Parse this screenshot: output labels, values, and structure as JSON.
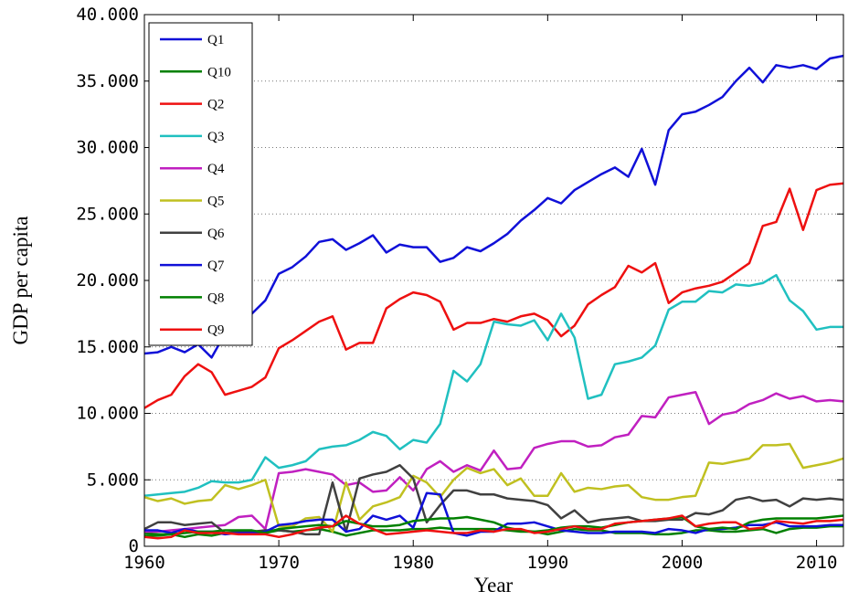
{
  "chart_data": {
    "type": "line",
    "xlabel": "Year",
    "ylabel": "GDP per capita",
    "x": [
      1960,
      1961,
      1962,
      1963,
      1964,
      1965,
      1966,
      1967,
      1968,
      1969,
      1970,
      1971,
      1972,
      1973,
      1974,
      1975,
      1976,
      1977,
      1978,
      1979,
      1980,
      1981,
      1982,
      1983,
      1984,
      1985,
      1986,
      1987,
      1988,
      1989,
      1990,
      1991,
      1992,
      1993,
      1994,
      1995,
      1996,
      1997,
      1998,
      1999,
      2000,
      2001,
      2002,
      2003,
      2004,
      2005,
      2006,
      2007,
      2008,
      2009,
      2010,
      2011,
      2012
    ],
    "xlim": [
      1960,
      2012
    ],
    "xticks": [
      1960,
      1970,
      1980,
      1990,
      2000,
      2010
    ],
    "ylim": [
      0,
      40000
    ],
    "yticks": [
      0,
      {
        "value": 5000,
        "label": "5.000"
      },
      {
        "value": 10000,
        "label": "10.000"
      },
      {
        "value": 15000,
        "label": "15.000"
      },
      {
        "value": 20000,
        "label": "20.000"
      },
      {
        "value": 25000,
        "label": "25.000"
      },
      {
        "value": 30000,
        "label": "30.000"
      },
      {
        "value": 35000,
        "label": "35.000"
      },
      {
        "value": 40000,
        "label": "40.000"
      }
    ],
    "grid": true,
    "legend": "upper left",
    "series": [
      {
        "name": "Q1",
        "color": "#1010d8",
        "values": [
          14500,
          14600,
          15000,
          14600,
          15200,
          14200,
          16000,
          17000,
          17500,
          18500,
          20500,
          21000,
          21800,
          22900,
          23100,
          22300,
          22800,
          23400,
          22100,
          22700,
          22500,
          22500,
          21400,
          21700,
          22500,
          22200,
          22800,
          23500,
          24500,
          25300,
          26200,
          25800,
          26800,
          27400,
          28000,
          28500,
          27800,
          29900,
          27200,
          31300,
          32500,
          32700,
          33200,
          33800,
          35000,
          36000,
          34900,
          36200,
          36000,
          36200,
          35900,
          36700,
          36900
        ]
      },
      {
        "name": "Q10",
        "color": "#008000",
        "values": [
          1000,
          900,
          900,
          700,
          900,
          800,
          1000,
          1000,
          1000,
          1000,
          1200,
          1100,
          1200,
          1300,
          1100,
          800,
          1000,
          1200,
          1200,
          1200,
          1300,
          1300,
          1400,
          1300,
          1300,
          1300,
          1300,
          1200,
          1100,
          1100,
          900,
          1100,
          1300,
          1200,
          1200,
          1000,
          1000,
          1000,
          900,
          900,
          1000,
          1200,
          1200,
          1100,
          1100,
          1200,
          1300,
          1000,
          1300,
          1400,
          1400,
          1500,
          1500
        ]
      },
      {
        "name": "Q2",
        "color": "#ee1010",
        "values": [
          10400,
          11000,
          11400,
          12800,
          13700,
          13100,
          11400,
          11700,
          12000,
          12700,
          14900,
          15500,
          16200,
          16900,
          17300,
          14800,
          15300,
          15300,
          17900,
          18600,
          19100,
          18900,
          18400,
          16300,
          16800,
          16800,
          17100,
          16900,
          17300,
          17500,
          17000,
          15800,
          16600,
          18200,
          18900,
          19500,
          21100,
          20600,
          21300,
          18300,
          19100,
          19400,
          19600,
          19900,
          20600,
          21300,
          24100,
          24400,
          26900,
          23800,
          26800,
          27200,
          27300
        ]
      },
      {
        "name": "Q3",
        "color": "#20c0c0",
        "values": [
          3800,
          3900,
          4000,
          4100,
          4400,
          4900,
          4800,
          4800,
          5000,
          6700,
          5900,
          6100,
          6400,
          7300,
          7500,
          7600,
          8000,
          8600,
          8300,
          7300,
          8000,
          7800,
          9200,
          13200,
          12400,
          13700,
          16900,
          16700,
          16600,
          17000,
          15500,
          17500,
          15700,
          11100,
          11400,
          13700,
          13900,
          14200,
          15100,
          17800,
          18400,
          18400,
          19200,
          19100,
          19700,
          19600,
          19800,
          20400,
          18500,
          17700,
          16300,
          16500,
          16500
        ]
      },
      {
        "name": "Q4",
        "color": "#c020c0",
        "values": [
          1100,
          1100,
          1200,
          1300,
          1400,
          1500,
          1600,
          2200,
          2300,
          1300,
          5500,
          5600,
          5800,
          5600,
          5400,
          4600,
          4800,
          4100,
          4200,
          5200,
          4200,
          5800,
          6400,
          5600,
          6100,
          5700,
          7200,
          5800,
          5900,
          7400,
          7700,
          7900,
          7900,
          7500,
          7600,
          8200,
          8400,
          9800,
          9700,
          11200,
          11400,
          11600,
          9200,
          9900,
          10100,
          10700,
          11000,
          11500,
          11100,
          11300,
          10900,
          11000,
          10900
        ]
      },
      {
        "name": "Q5",
        "color": "#c0c020",
        "values": [
          3700,
          3400,
          3600,
          3200,
          3400,
          3500,
          4600,
          4300,
          4600,
          5000,
          1500,
          1500,
          2100,
          2200,
          1100,
          4800,
          2000,
          3000,
          3300,
          3700,
          5300,
          4800,
          3700,
          5000,
          5900,
          5500,
          5800,
          4600,
          5100,
          3800,
          3800,
          5500,
          4100,
          4400,
          4300,
          4500,
          4600,
          3700,
          3500,
          3500,
          3700,
          3800,
          6300,
          6200,
          6400,
          6600,
          7600,
          7600,
          7700,
          5900,
          6100,
          6300,
          6600
        ]
      },
      {
        "name": "Q6",
        "color": "#404040",
        "values": [
          1300,
          1800,
          1800,
          1600,
          1700,
          1800,
          1000,
          1100,
          1100,
          1200,
          1200,
          1100,
          900,
          900,
          4800,
          1100,
          5100,
          5400,
          5600,
          6100,
          5100,
          1800,
          3100,
          4200,
          4200,
          3900,
          3900,
          3600,
          3500,
          3400,
          3100,
          2100,
          2700,
          1800,
          2000,
          2100,
          2200,
          1900,
          1900,
          2000,
          2000,
          2500,
          2400,
          2700,
          3500,
          3700,
          3400,
          3500,
          3000,
          3600,
          3500,
          3600,
          3500
        ]
      },
      {
        "name": "Q7",
        "color": "#1010d8",
        "values": [
          1200,
          1200,
          1000,
          1300,
          1100,
          1100,
          900,
          1000,
          1000,
          1100,
          1600,
          1700,
          1900,
          2000,
          2000,
          1100,
          1300,
          2300,
          2000,
          2300,
          1400,
          4000,
          3900,
          1000,
          800,
          1100,
          1100,
          1700,
          1700,
          1800,
          1500,
          1200,
          1100,
          1000,
          1000,
          1100,
          1100,
          1100,
          1000,
          1300,
          1200,
          1000,
          1300,
          1300,
          1400,
          1600,
          1600,
          1800,
          1500,
          1500,
          1500,
          1600,
          1600
        ]
      },
      {
        "name": "Q8",
        "color": "#008000",
        "values": [
          800,
          800,
          900,
          1000,
          1100,
          1100,
          1200,
          1200,
          1200,
          1000,
          1300,
          1400,
          1500,
          1600,
          1500,
          1900,
          1700,
          1500,
          1500,
          1600,
          1900,
          2000,
          2100,
          2100,
          2200,
          2000,
          1800,
          1400,
          1200,
          1100,
          1200,
          1400,
          1500,
          1500,
          1400,
          1600,
          1800,
          1900,
          2000,
          2100,
          2200,
          1500,
          1300,
          1400,
          1300,
          1800,
          2000,
          2100,
          2100,
          2100,
          2100,
          2200,
          2300
        ]
      },
      {
        "name": "Q9",
        "color": "#ee1010",
        "values": [
          700,
          600,
          700,
          1200,
          1000,
          1000,
          1000,
          900,
          900,
          900,
          700,
          900,
          1200,
          1400,
          1500,
          2300,
          1700,
          1300,
          900,
          1000,
          1100,
          1200,
          1100,
          1000,
          1000,
          1200,
          1100,
          1300,
          1300,
          1000,
          1100,
          1300,
          1500,
          1300,
          1300,
          1700,
          1800,
          1900,
          2000,
          2100,
          2300,
          1500,
          1700,
          1800,
          1800,
          1300,
          1400,
          1900,
          1800,
          1700,
          1900,
          1900,
          2000
        ]
      }
    ]
  }
}
